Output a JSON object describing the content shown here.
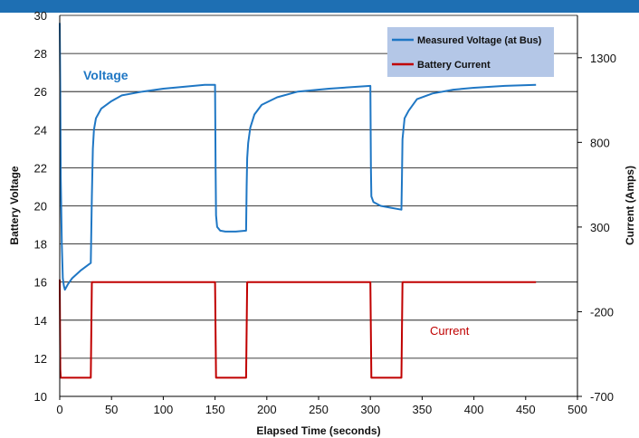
{
  "chart_data": {
    "type": "line",
    "xlabel": "Elapsed Time (seconds)",
    "ylabel": "Battery Voltage",
    "y2label": "Current (Amps)",
    "xlim": [
      0,
      500
    ],
    "ylim": [
      10,
      30
    ],
    "y2lim": [
      -700,
      1550
    ],
    "x_ticks": [
      0,
      50,
      100,
      150,
      200,
      250,
      300,
      350,
      400,
      450,
      500
    ],
    "y_ticks": [
      10,
      12,
      14,
      16,
      18,
      20,
      22,
      24,
      26,
      28,
      30
    ],
    "y2_ticks": [
      -700,
      -200,
      300,
      800,
      1300
    ],
    "grid": "horizontal",
    "legend_position": "top-right",
    "annotations": {
      "voltage": "Voltage",
      "current": "Current"
    },
    "colors": {
      "voltage": "#1f77c4",
      "current": "#c00000",
      "banner": "#1e6fb3",
      "legend_bg": "#b4c7e7"
    },
    "series": [
      {
        "name": "Measured Voltage (at Bus)",
        "axis": "left",
        "x": [
          0,
          0.5,
          1,
          2,
          3,
          4,
          5,
          8,
          12,
          20,
          30,
          31,
          32,
          33,
          35,
          40,
          50,
          60,
          80,
          100,
          120,
          140,
          150,
          150.5,
          151,
          152,
          155,
          160,
          170,
          180,
          180.5,
          181,
          182,
          184,
          188,
          195,
          210,
          230,
          260,
          300,
          300.5,
          301,
          303,
          310,
          320,
          330,
          330.5,
          331,
          333,
          337,
          345,
          360,
          380,
          400,
          430,
          460
        ],
        "y": [
          29.6,
          26.0,
          21.5,
          18.0,
          16.2,
          15.8,
          15.6,
          15.9,
          16.2,
          16.6,
          17.0,
          20.5,
          23.0,
          24.0,
          24.6,
          25.1,
          25.5,
          25.8,
          26.0,
          26.15,
          26.25,
          26.35,
          26.35,
          22.0,
          19.5,
          18.9,
          18.7,
          18.65,
          18.65,
          18.7,
          21.0,
          22.5,
          23.3,
          24.1,
          24.8,
          25.3,
          25.7,
          26.0,
          26.15,
          26.3,
          22.0,
          20.5,
          20.2,
          20.0,
          19.9,
          19.8,
          21.5,
          23.5,
          24.6,
          25.0,
          25.6,
          25.9,
          26.1,
          26.2,
          26.3,
          26.35
        ]
      },
      {
        "name": "Battery Current",
        "axis": "right",
        "x": [
          0,
          0.5,
          1,
          30,
          31,
          150,
          151,
          180,
          181,
          300,
          301,
          330,
          331,
          460
        ],
        "y": [
          -10,
          -540,
          -590,
          -590,
          -25,
          -25,
          -590,
          -590,
          -25,
          -25,
          -590,
          -590,
          -25,
          -25
        ]
      }
    ]
  }
}
